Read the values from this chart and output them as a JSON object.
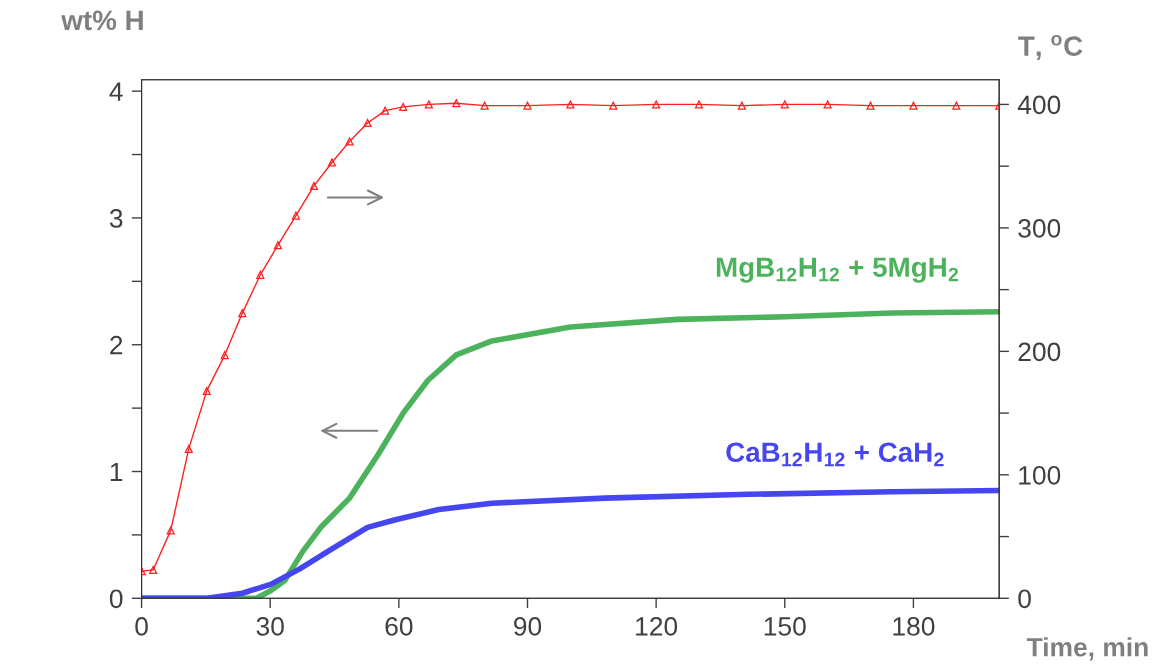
{
  "chart_data": {
    "type": "line",
    "xlabel": "Time, min",
    "ylabel": "wt% H",
    "y2label": "T, $^{o}$C",
    "xlim": [
      0,
      200
    ],
    "xticks": [
      0,
      30,
      60,
      90,
      120,
      150,
      180
    ],
    "ylim": [
      0,
      4.09
    ],
    "yticks": [
      0,
      {
        "value": 0.5,
        "label": null
      },
      1,
      {
        "value": 1.5,
        "label": null
      },
      2,
      {
        "value": 2.5,
        "label": null
      },
      3,
      {
        "value": 3.5,
        "label": null
      },
      4
    ],
    "y2lim": [
      0,
      420
    ],
    "y2ticks": [
      0,
      {
        "value": 50,
        "label": null
      },
      100,
      {
        "value": 150,
        "label": null
      },
      200,
      {
        "value": 250,
        "label": null
      },
      300,
      {
        "value": 350,
        "label": null
      },
      400
    ],
    "grid": false,
    "legend": false,
    "line_style": "solid",
    "series": [
      {
        "axis": "y2",
        "color": "#ff2020",
        "marker": "triangle",
        "x": [
          0,
          2.7,
          6.8,
          11,
          15.2,
          19.4,
          23.5,
          27.7,
          31.8,
          36,
          40.2,
          44.4,
          48.5,
          52.7,
          56.8,
          61,
          67,
          73.4,
          80,
          90,
          100,
          110,
          120,
          130,
          140,
          150,
          160,
          170,
          180,
          190,
          200
        ],
        "values": [
          22,
          23,
          55,
          121,
          168,
          197,
          231,
          262,
          286,
          310,
          334,
          353,
          370,
          385,
          395,
          398,
          400,
          401,
          399,
          399,
          400,
          399,
          400,
          400,
          399,
          400,
          400,
          399,
          399,
          399,
          399
        ]
      },
      {
        "name": "MgB$_{12}$H$_{12}$ + 5MgH$_{2}$",
        "color": "#4cb35c",
        "x": [
          0,
          26.8,
          30.1,
          33.4,
          37.6,
          41.8,
          48.5,
          55.1,
          61,
          66.8,
          73.4,
          81.7,
          100,
          125,
          150,
          175,
          199.8
        ],
        "values": [
          0,
          0,
          0.06,
          0.14,
          0.37,
          0.56,
          0.79,
          1.13,
          1.46,
          1.72,
          1.92,
          2.03,
          2.14,
          2.2,
          2.22,
          2.25,
          2.26
        ]
      },
      {
        "name": "CaB$_{12}$H$_{12}$ + CaH$_{2}$",
        "color": "#4646f0",
        "x": [
          0,
          15.2,
          23.5,
          30.1,
          36.8,
          44.4,
          52.7,
          59.2,
          69.3,
          81.7,
          108,
          141.7,
          175,
          199.8
        ],
        "values": [
          0,
          0,
          0.04,
          0.11,
          0.23,
          0.39,
          0.56,
          0.62,
          0.7,
          0.75,
          0.79,
          0.82,
          0.84,
          0.85
        ]
      }
    ]
  }
}
